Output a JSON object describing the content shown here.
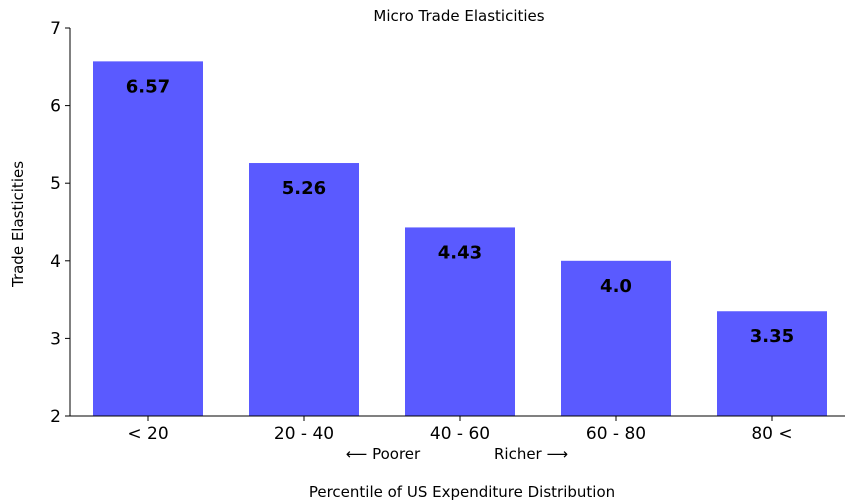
{
  "chart_data": {
    "type": "bar",
    "title": "Micro Trade Elasticities",
    "xlabel": "Percentile of US Expenditure Distribution",
    "ylabel": "Trade Elasticities",
    "categories": [
      "< 20",
      "20 - 40",
      "40 - 60",
      "60 - 80",
      "80 <"
    ],
    "values": [
      6.57,
      5.26,
      4.43,
      4.0,
      3.35
    ],
    "data_labels": [
      "6.57",
      "5.26",
      "4.43",
      "4.0",
      "3.35"
    ],
    "ylim": [
      2,
      7
    ],
    "yticks": [
      "2",
      "3",
      "4",
      "5",
      "6",
      "7"
    ],
    "annotations": {
      "poorer": "⟵ Poorer",
      "richer": "Richer ⟶"
    },
    "bar_color": "#5a5aff",
    "grid": false,
    "legend": "none"
  }
}
